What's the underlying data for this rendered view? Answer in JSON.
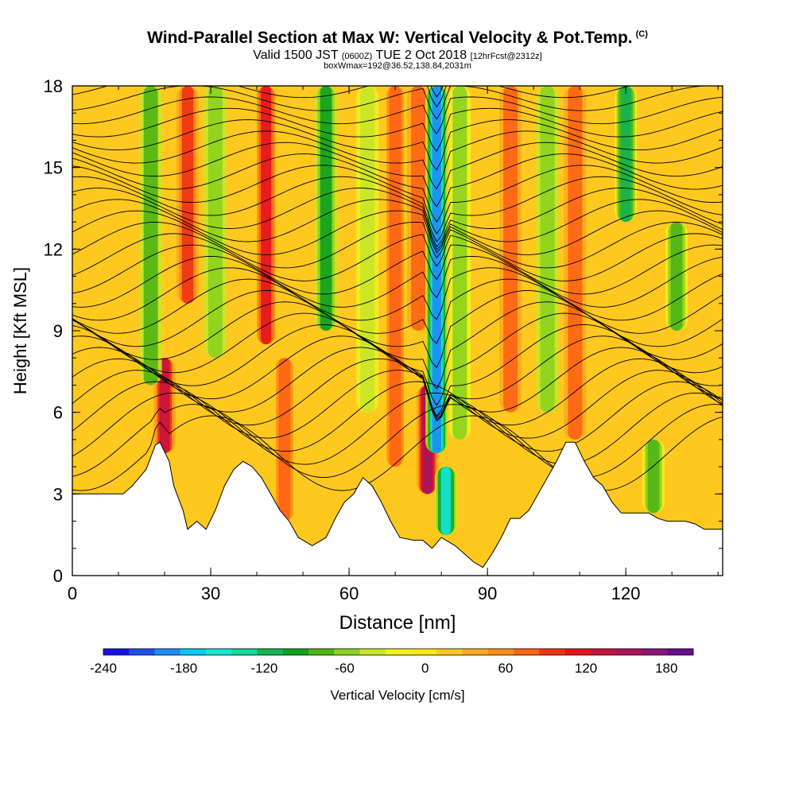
{
  "header": {
    "title": "Wind-Parallel Section at Max W: Vertical Velocity & Pot.Temp.",
    "copyright": "(C)",
    "valid_prefix": "Valid 1500 JST",
    "valid_utc": "(0600Z)",
    "valid_date": "TUE 2 Oct 2018",
    "forecast": "[12hrFcst@2312z]",
    "box": "boxWmax=192@36.52,138.84,2031m"
  },
  "colorbar": {
    "label": "Vertical Velocity [cm/s]",
    "ticks": [
      "-240",
      "-180",
      "-120",
      "-60",
      "0",
      "60",
      "120",
      "180"
    ],
    "colors": [
      "#1414e6",
      "#1e50f0",
      "#1e8cf5",
      "#0ac8f0",
      "#14e6d2",
      "#10d69a",
      "#14b450",
      "#10a01e",
      "#50b414",
      "#8cd21e",
      "#c8e628",
      "#f0f01e",
      "#ffe614",
      "#ffc81e",
      "#ffaa1e",
      "#ff8c14",
      "#ff6414",
      "#f03214",
      "#e6141e",
      "#c8143c",
      "#aa145a",
      "#8c1478",
      "#640f8c"
    ]
  },
  "chart_data": {
    "type": "heatmap",
    "title": "Wind-Parallel Section at Max W: Vertical Velocity & Pot.Temp.",
    "xlabel": "Distance [nm]",
    "ylabel": "Height [Kft MSL]",
    "xlim": [
      0,
      141
    ],
    "ylim": [
      0,
      18
    ],
    "x_ticks": [
      0,
      30,
      60,
      90,
      120
    ],
    "y_ticks": [
      0,
      3,
      6,
      9,
      12,
      15,
      18
    ],
    "fill_variable": "Vertical Velocity [cm/s]",
    "fill_range": [
      -240,
      200
    ],
    "contour_variable": "Pot.Temp.",
    "terrain_height_kft": [
      [
        0,
        3.0
      ],
      [
        11,
        3.0
      ],
      [
        13,
        3.3
      ],
      [
        16,
        3.9
      ],
      [
        18,
        4.8
      ],
      [
        19,
        4.9
      ],
      [
        21,
        4.2
      ],
      [
        22,
        3.3
      ],
      [
        24,
        2.4
      ],
      [
        25,
        1.7
      ],
      [
        27,
        2.0
      ],
      [
        29,
        1.7
      ],
      [
        31,
        2.4
      ],
      [
        33,
        3.3
      ],
      [
        35,
        3.9
      ],
      [
        37,
        4.2
      ],
      [
        39,
        4.0
      ],
      [
        41,
        3.6
      ],
      [
        43,
        3.0
      ],
      [
        45,
        2.4
      ],
      [
        47,
        2.0
      ],
      [
        49,
        1.4
      ],
      [
        52,
        1.1
      ],
      [
        55,
        1.4
      ],
      [
        57,
        2.1
      ],
      [
        59,
        2.7
      ],
      [
        61,
        3.0
      ],
      [
        63,
        3.6
      ],
      [
        65,
        3.3
      ],
      [
        67,
        2.7
      ],
      [
        69,
        2.0
      ],
      [
        71,
        1.4
      ],
      [
        74,
        1.3
      ],
      [
        76,
        1.3
      ],
      [
        78,
        1.0
      ],
      [
        80,
        1.4
      ],
      [
        83,
        1.1
      ],
      [
        85,
        0.8
      ],
      [
        87,
        0.5
      ],
      [
        89,
        0.3
      ],
      [
        91,
        0.8
      ],
      [
        93,
        1.4
      ],
      [
        95,
        2.1
      ],
      [
        97,
        2.1
      ],
      [
        99,
        2.4
      ],
      [
        101,
        3.0
      ],
      [
        103,
        3.6
      ],
      [
        105,
        4.2
      ],
      [
        107,
        4.9
      ],
      [
        109,
        4.9
      ],
      [
        111,
        4.2
      ],
      [
        113,
        3.6
      ],
      [
        115,
        3.3
      ],
      [
        117,
        2.7
      ],
      [
        119,
        2.3
      ],
      [
        121,
        2.3
      ],
      [
        123,
        2.3
      ],
      [
        125,
        2.3
      ],
      [
        127,
        2.1
      ],
      [
        129,
        2.0
      ],
      [
        131,
        2.0
      ],
      [
        133,
        2.0
      ],
      [
        135,
        1.9
      ],
      [
        137,
        1.7
      ],
      [
        139,
        1.7
      ],
      [
        141,
        1.7
      ]
    ],
    "vertical_velocity_features": [
      {
        "x": 20,
        "z0": 4.5,
        "z1": 8.0,
        "w": 130
      },
      {
        "x": 25,
        "z0": 10.0,
        "z1": 18.0,
        "w": 90
      },
      {
        "x": 17,
        "z0": 7.0,
        "z1": 18.0,
        "w": -70
      },
      {
        "x": 31,
        "z0": 8.0,
        "z1": 18.0,
        "w": -60
      },
      {
        "x": 42,
        "z0": 8.5,
        "z1": 18.0,
        "w": 110
      },
      {
        "x": 46,
        "z0": 2.0,
        "z1": 8.0,
        "w": 80
      },
      {
        "x": 55,
        "z0": 9.0,
        "z1": 18.0,
        "w": -100
      },
      {
        "x": 64,
        "z0": 6.0,
        "z1": 18.0,
        "w": -40
      },
      {
        "x": 70,
        "z0": 4.0,
        "z1": 18.0,
        "w": 80
      },
      {
        "x": 75,
        "z0": 9.0,
        "z1": 18.0,
        "w": 70
      },
      {
        "x": 77,
        "z0": 3.0,
        "z1": 7.0,
        "w": 160
      },
      {
        "x": 79,
        "z0": 4.5,
        "z1": 18.0,
        "w": -190
      },
      {
        "x": 81,
        "z0": 1.5,
        "z1": 4.0,
        "w": -150
      },
      {
        "x": 84,
        "z0": 5.0,
        "z1": 18.0,
        "w": -50
      },
      {
        "x": 95,
        "z0": 6.0,
        "z1": 18.0,
        "w": 70
      },
      {
        "x": 103,
        "z0": 6.0,
        "z1": 18.0,
        "w": -60
      },
      {
        "x": 109,
        "z0": 5.0,
        "z1": 18.0,
        "w": 70
      },
      {
        "x": 120,
        "z0": 13.0,
        "z1": 18.0,
        "w": -110
      },
      {
        "x": 131,
        "z0": 9.0,
        "z1": 13.0,
        "w": -80
      },
      {
        "x": 126,
        "z0": 2.3,
        "z1": 5.0,
        "w": -80
      }
    ]
  }
}
